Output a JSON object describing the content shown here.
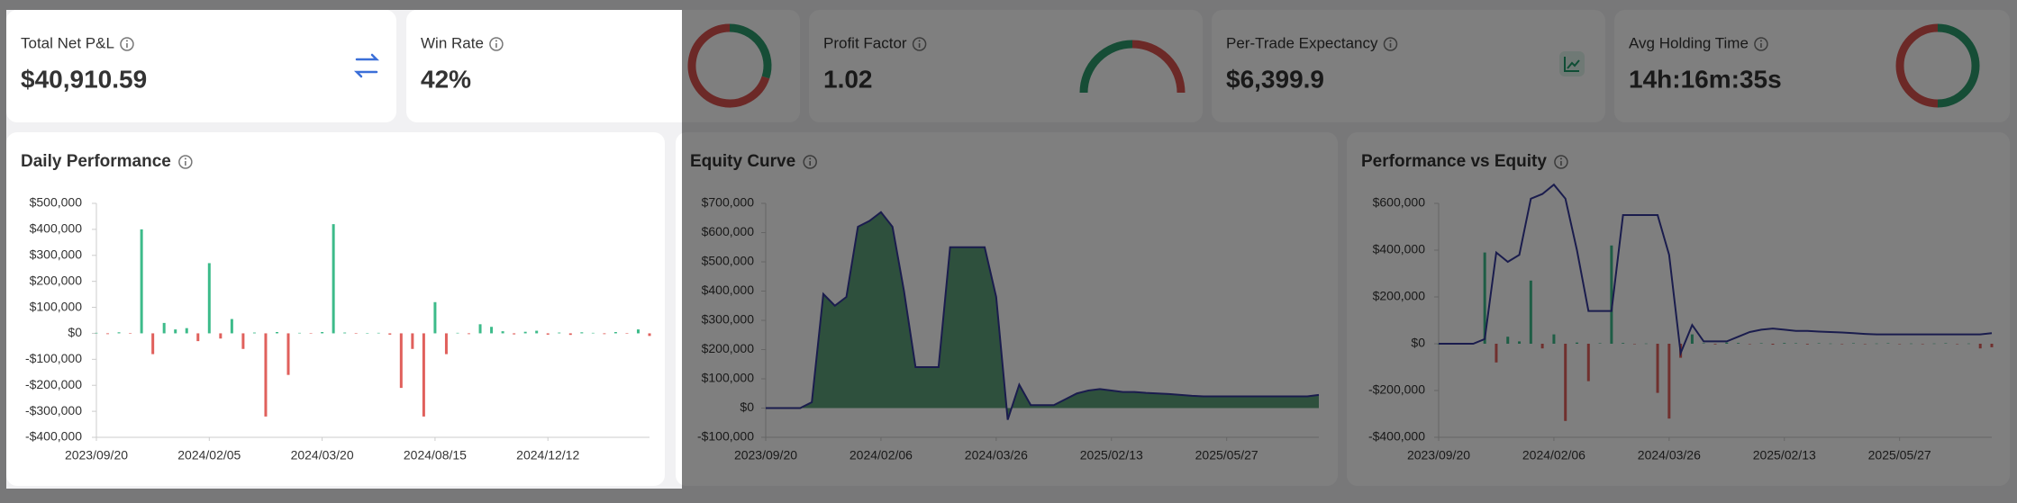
{
  "cards": [
    {
      "label": "Total Net P&L",
      "value": "$40,910.59",
      "color": "#16946a"
    },
    {
      "label": "Win Rate",
      "value": "42%",
      "color": "#111111"
    },
    {
      "label": "Profit Factor",
      "value": "1.02",
      "color": "#111111"
    },
    {
      "label": "Per-Trade Expectancy",
      "value": "$6,399.9",
      "color": "#16946a"
    },
    {
      "label": "Avg Holding Time",
      "value": "14h:16m:35s",
      "color": "#111111"
    }
  ],
  "chart_data": [
    {
      "type": "bar",
      "title": "Daily Performance",
      "categories": [
        "2023/09/20",
        null,
        null,
        null,
        null,
        null,
        null,
        null,
        null,
        null,
        "2024/02/05",
        null,
        null,
        null,
        null,
        null,
        null,
        null,
        null,
        null,
        "2024/03/20",
        null,
        null,
        null,
        null,
        null,
        null,
        null,
        null,
        null,
        "2024/08/15",
        null,
        null,
        null,
        null,
        null,
        null,
        null,
        null,
        null,
        "2024/12/12",
        null,
        null,
        null,
        null,
        null,
        null,
        null,
        null,
        null
      ],
      "values": [
        2000,
        -3000,
        4000,
        -2000,
        400000,
        -80000,
        40000,
        15000,
        20000,
        -30000,
        270000,
        -20000,
        55000,
        -60000,
        3000,
        -320000,
        5000,
        -160000,
        2000,
        -1000,
        5000,
        420000,
        3000,
        -2000,
        1000,
        2000,
        -5000,
        -210000,
        -60000,
        -320000,
        120000,
        -80000,
        2000,
        -3000,
        35000,
        25000,
        8000,
        -4000,
        6000,
        10000,
        -5000,
        3000,
        -6000,
        4000,
        2000,
        -3000,
        5000,
        -2000,
        15000,
        -10000
      ],
      "positive_color": "#3dbb8a",
      "negative_color": "#e0605c",
      "ylim": [
        -400000,
        500000
      ],
      "yticks": [
        {
          "value": 500000,
          "label": "$500,000"
        },
        {
          "value": 400000,
          "label": "$400,000"
        },
        {
          "value": 300000,
          "label": "$300,000"
        },
        {
          "value": 200000,
          "label": "$200,000"
        },
        {
          "value": 100000,
          "label": "$100,000"
        },
        {
          "value": 0,
          "label": "$0"
        },
        {
          "value": -100000,
          "label": "-$100,000"
        },
        {
          "value": -200000,
          "label": "-$200,000"
        },
        {
          "value": -300000,
          "label": "-$300,000"
        },
        {
          "value": -400000,
          "label": "-$400,000"
        }
      ]
    },
    {
      "type": "area",
      "title": "Equity Curve",
      "categories": [
        "2023/09/20",
        null,
        null,
        null,
        null,
        null,
        null,
        null,
        null,
        null,
        "2024/02/06",
        null,
        null,
        null,
        null,
        null,
        null,
        null,
        null,
        null,
        "2024/03/26",
        null,
        null,
        null,
        null,
        null,
        null,
        null,
        null,
        null,
        "2025/02/13",
        null,
        null,
        null,
        null,
        null,
        null,
        null,
        null,
        null,
        "2025/05/27",
        null,
        null,
        null,
        null,
        null,
        null,
        null,
        null
      ],
      "values": [
        0,
        0,
        0,
        0,
        20000,
        390000,
        350000,
        380000,
        620000,
        640000,
        670000,
        620000,
        400000,
        140000,
        140000,
        140000,
        550000,
        550000,
        550000,
        550000,
        380000,
        -40000,
        80000,
        10000,
        10000,
        10000,
        30000,
        50000,
        60000,
        65000,
        60000,
        55000,
        55000,
        52000,
        50000,
        48000,
        45000,
        42000,
        40000,
        40000,
        40000,
        40000,
        40000,
        40000,
        40000,
        40000,
        40000,
        40000,
        45000
      ],
      "color": "#3f8f63",
      "line_color": "#34389a",
      "ylim": [
        -100000,
        700000
      ],
      "yticks": [
        {
          "value": 700000,
          "label": "$700,000"
        },
        {
          "value": 600000,
          "label": "$600,000"
        },
        {
          "value": 500000,
          "label": "$500,000"
        },
        {
          "value": 400000,
          "label": "$400,000"
        },
        {
          "value": 300000,
          "label": "$300,000"
        },
        {
          "value": 200000,
          "label": "$200,000"
        },
        {
          "value": 100000,
          "label": "$100,000"
        },
        {
          "value": 0,
          "label": "$0"
        },
        {
          "value": -100000,
          "label": "-$100,000"
        }
      ]
    },
    {
      "type": "combo",
      "title": "Performance vs Equity",
      "categories": [
        "2023/09/20",
        null,
        null,
        null,
        null,
        null,
        null,
        null,
        null,
        null,
        "2024/02/06",
        null,
        null,
        null,
        null,
        null,
        null,
        null,
        null,
        null,
        "2024/03/26",
        null,
        null,
        null,
        null,
        null,
        null,
        null,
        null,
        null,
        "2025/02/13",
        null,
        null,
        null,
        null,
        null,
        null,
        null,
        null,
        null,
        "2025/05/27",
        null,
        null,
        null,
        null,
        null,
        null,
        null,
        null
      ],
      "values": [
        0,
        0,
        0,
        0,
        390000,
        -80000,
        30000,
        10000,
        270000,
        -20000,
        40000,
        -330000,
        5000,
        -160000,
        2000,
        420000,
        3000,
        -2000,
        1000,
        -210000,
        -320000,
        -60000,
        40000,
        2000,
        -3000,
        5000,
        3000,
        -2000,
        2000,
        -4000,
        3000,
        2000,
        -3000,
        2000,
        1000,
        -2000,
        2000,
        -1000,
        1000,
        2000,
        -1000,
        1000,
        -2000,
        1000,
        2000,
        -1000,
        1000,
        -20000,
        -15000
      ],
      "line_values": [
        0,
        0,
        0,
        0,
        20000,
        390000,
        350000,
        380000,
        620000,
        640000,
        680000,
        620000,
        400000,
        140000,
        140000,
        140000,
        550000,
        550000,
        550000,
        550000,
        380000,
        -40000,
        80000,
        10000,
        10000,
        10000,
        30000,
        50000,
        60000,
        65000,
        60000,
        55000,
        55000,
        52000,
        50000,
        48000,
        45000,
        42000,
        40000,
        40000,
        40000,
        40000,
        40000,
        40000,
        40000,
        40000,
        40000,
        40000,
        45000
      ],
      "positive_color": "#3dbb8a",
      "negative_color": "#e0605c",
      "line_color": "#34389a",
      "ylim": [
        -400000,
        600000
      ],
      "yticks": [
        {
          "value": 600000,
          "label": "$600,000"
        },
        {
          "value": 400000,
          "label": "$400,000"
        },
        {
          "value": 200000,
          "label": "$200,000"
        },
        {
          "value": 0,
          "label": "$0"
        },
        {
          "value": -200000,
          "label": "-$200,000"
        },
        {
          "value": -400000,
          "label": "-$400,000"
        }
      ]
    }
  ]
}
